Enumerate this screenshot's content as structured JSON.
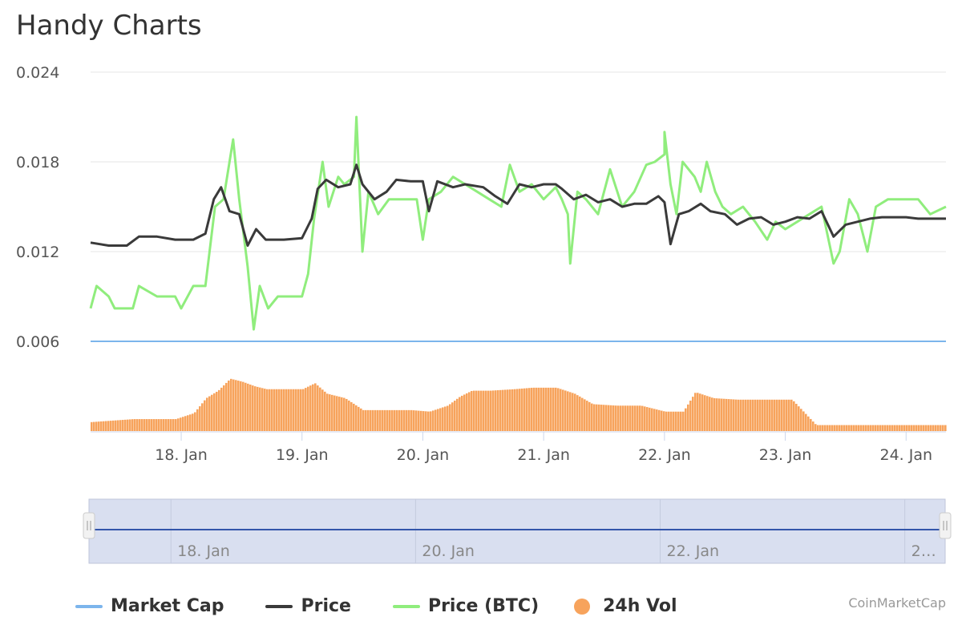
{
  "title": "Handy Charts",
  "credits": "CoinMarketCap",
  "colors": {
    "market_cap": "#7cb5ec",
    "price": "#3a3a3a",
    "price_btc": "#90ed7d",
    "volume": "#f7a35c",
    "grid": "#e6e6e6",
    "navigator_fill": "#d9dff0",
    "navigator_line": "#3355aa"
  },
  "chart_data": {
    "type": "line",
    "ylim": [
      0,
      0.024
    ],
    "yticks": [
      "0.006",
      "0.012",
      "0.018",
      "0.024"
    ],
    "xticks": [
      "18. Jan",
      "19. Jan",
      "20. Jan",
      "21. Jan",
      "22. Jan",
      "23. Jan",
      "24. Jan"
    ],
    "x_range_days": [
      17.25,
      24.33
    ],
    "grid": true,
    "series": [
      {
        "name": "Price",
        "type": "line",
        "points": [
          [
            17.25,
            0.0126
          ],
          [
            17.4,
            0.0124
          ],
          [
            17.55,
            0.0124
          ],
          [
            17.65,
            0.013
          ],
          [
            17.8,
            0.013
          ],
          [
            17.95,
            0.0128
          ],
          [
            18.1,
            0.0128
          ],
          [
            18.2,
            0.0132
          ],
          [
            18.27,
            0.0155
          ],
          [
            18.33,
            0.0163
          ],
          [
            18.4,
            0.0147
          ],
          [
            18.48,
            0.0145
          ],
          [
            18.55,
            0.0124
          ],
          [
            18.62,
            0.0135
          ],
          [
            18.7,
            0.0128
          ],
          [
            18.85,
            0.0128
          ],
          [
            19.0,
            0.0129
          ],
          [
            19.08,
            0.0142
          ],
          [
            19.13,
            0.0162
          ],
          [
            19.2,
            0.0168
          ],
          [
            19.3,
            0.0163
          ],
          [
            19.4,
            0.0165
          ],
          [
            19.45,
            0.0178
          ],
          [
            19.5,
            0.0165
          ],
          [
            19.6,
            0.0155
          ],
          [
            19.7,
            0.016
          ],
          [
            19.78,
            0.0168
          ],
          [
            19.9,
            0.0167
          ],
          [
            20.0,
            0.0167
          ],
          [
            20.05,
            0.0147
          ],
          [
            20.12,
            0.0167
          ],
          [
            20.25,
            0.0163
          ],
          [
            20.35,
            0.0165
          ],
          [
            20.5,
            0.0163
          ],
          [
            20.6,
            0.0157
          ],
          [
            20.7,
            0.0152
          ],
          [
            20.8,
            0.0165
          ],
          [
            20.9,
            0.0163
          ],
          [
            21.0,
            0.0165
          ],
          [
            21.1,
            0.0165
          ],
          [
            21.15,
            0.0162
          ],
          [
            21.25,
            0.0155
          ],
          [
            21.35,
            0.0158
          ],
          [
            21.45,
            0.0153
          ],
          [
            21.55,
            0.0155
          ],
          [
            21.65,
            0.015
          ],
          [
            21.75,
            0.0152
          ],
          [
            21.85,
            0.0152
          ],
          [
            21.95,
            0.0157
          ],
          [
            22.0,
            0.0153
          ],
          [
            22.05,
            0.0125
          ],
          [
            22.12,
            0.0145
          ],
          [
            22.2,
            0.0147
          ],
          [
            22.3,
            0.0152
          ],
          [
            22.38,
            0.0147
          ],
          [
            22.5,
            0.0145
          ],
          [
            22.6,
            0.0138
          ],
          [
            22.7,
            0.0142
          ],
          [
            22.8,
            0.0143
          ],
          [
            22.9,
            0.0138
          ],
          [
            23.0,
            0.014
          ],
          [
            23.1,
            0.0143
          ],
          [
            23.2,
            0.0142
          ],
          [
            23.3,
            0.0147
          ],
          [
            23.4,
            0.013
          ],
          [
            23.5,
            0.0138
          ],
          [
            23.6,
            0.014
          ],
          [
            23.7,
            0.0142
          ],
          [
            23.8,
            0.0143
          ],
          [
            23.9,
            0.0143
          ],
          [
            24.0,
            0.0143
          ],
          [
            24.1,
            0.0142
          ],
          [
            24.2,
            0.0142
          ],
          [
            24.33,
            0.0142
          ]
        ]
      },
      {
        "name": "Price (BTC)",
        "type": "line",
        "points": [
          [
            17.25,
            0.0082
          ],
          [
            17.3,
            0.0097
          ],
          [
            17.4,
            0.009
          ],
          [
            17.45,
            0.0082
          ],
          [
            17.6,
            0.0082
          ],
          [
            17.65,
            0.0097
          ],
          [
            17.8,
            0.009
          ],
          [
            17.95,
            0.009
          ],
          [
            18.0,
            0.0082
          ],
          [
            18.1,
            0.0097
          ],
          [
            18.2,
            0.0097
          ],
          [
            18.28,
            0.015
          ],
          [
            18.35,
            0.0155
          ],
          [
            18.43,
            0.0195
          ],
          [
            18.48,
            0.0155
          ],
          [
            18.55,
            0.011
          ],
          [
            18.6,
            0.0068
          ],
          [
            18.65,
            0.0097
          ],
          [
            18.72,
            0.0082
          ],
          [
            18.8,
            0.009
          ],
          [
            19.0,
            0.009
          ],
          [
            19.05,
            0.0105
          ],
          [
            19.1,
            0.0142
          ],
          [
            19.17,
            0.018
          ],
          [
            19.22,
            0.015
          ],
          [
            19.3,
            0.017
          ],
          [
            19.35,
            0.0165
          ],
          [
            19.43,
            0.017
          ],
          [
            19.45,
            0.021
          ],
          [
            19.5,
            0.012
          ],
          [
            19.55,
            0.016
          ],
          [
            19.63,
            0.0145
          ],
          [
            19.72,
            0.0155
          ],
          [
            19.8,
            0.0155
          ],
          [
            19.95,
            0.0155
          ],
          [
            20.0,
            0.0128
          ],
          [
            20.05,
            0.0155
          ],
          [
            20.15,
            0.016
          ],
          [
            20.25,
            0.017
          ],
          [
            20.35,
            0.0165
          ],
          [
            20.45,
            0.016
          ],
          [
            20.55,
            0.0155
          ],
          [
            20.65,
            0.015
          ],
          [
            20.72,
            0.0178
          ],
          [
            20.8,
            0.016
          ],
          [
            20.9,
            0.0165
          ],
          [
            21.0,
            0.0155
          ],
          [
            21.1,
            0.0163
          ],
          [
            21.15,
            0.0155
          ],
          [
            21.2,
            0.0145
          ],
          [
            21.22,
            0.0112
          ],
          [
            21.28,
            0.016
          ],
          [
            21.35,
            0.0155
          ],
          [
            21.45,
            0.0145
          ],
          [
            21.5,
            0.016
          ],
          [
            21.55,
            0.0175
          ],
          [
            21.65,
            0.015
          ],
          [
            21.75,
            0.016
          ],
          [
            21.85,
            0.0178
          ],
          [
            21.92,
            0.018
          ],
          [
            22.0,
            0.0185
          ],
          [
            22.0,
            0.02
          ],
          [
            22.05,
            0.0165
          ],
          [
            22.1,
            0.0145
          ],
          [
            22.15,
            0.018
          ],
          [
            22.25,
            0.017
          ],
          [
            22.3,
            0.016
          ],
          [
            22.35,
            0.018
          ],
          [
            22.42,
            0.016
          ],
          [
            22.48,
            0.015
          ],
          [
            22.55,
            0.0145
          ],
          [
            22.65,
            0.015
          ],
          [
            22.75,
            0.014
          ],
          [
            22.85,
            0.0128
          ],
          [
            22.92,
            0.014
          ],
          [
            23.0,
            0.0135
          ],
          [
            23.1,
            0.014
          ],
          [
            23.2,
            0.0145
          ],
          [
            23.3,
            0.015
          ],
          [
            23.4,
            0.0112
          ],
          [
            23.45,
            0.012
          ],
          [
            23.53,
            0.0155
          ],
          [
            23.6,
            0.0145
          ],
          [
            23.68,
            0.012
          ],
          [
            23.75,
            0.015
          ],
          [
            23.85,
            0.0155
          ],
          [
            23.95,
            0.0155
          ],
          [
            24.1,
            0.0155
          ],
          [
            24.2,
            0.0145
          ],
          [
            24.33,
            0.015
          ]
        ]
      },
      {
        "name": "Market Cap",
        "type": "line",
        "points": [
          [
            17.25,
            0.006
          ],
          [
            24.33,
            0.006
          ]
        ]
      },
      {
        "name": "24h Vol",
        "type": "column",
        "points": [
          [
            17.25,
            0.0006
          ],
          [
            17.6,
            0.0008
          ],
          [
            17.95,
            0.0008
          ],
          [
            18.1,
            0.0012
          ],
          [
            18.2,
            0.0022
          ],
          [
            18.3,
            0.0027
          ],
          [
            18.4,
            0.0035
          ],
          [
            18.5,
            0.0033
          ],
          [
            18.6,
            0.003
          ],
          [
            18.7,
            0.0028
          ],
          [
            18.85,
            0.0028
          ],
          [
            19.0,
            0.0028
          ],
          [
            19.1,
            0.0032
          ],
          [
            19.2,
            0.0025
          ],
          [
            19.35,
            0.0022
          ],
          [
            19.5,
            0.0014
          ],
          [
            19.7,
            0.0014
          ],
          [
            19.9,
            0.0014
          ],
          [
            20.05,
            0.0013
          ],
          [
            20.2,
            0.0017
          ],
          [
            20.3,
            0.0023
          ],
          [
            20.4,
            0.0027
          ],
          [
            20.55,
            0.0027
          ],
          [
            20.75,
            0.0028
          ],
          [
            20.9,
            0.0029
          ],
          [
            21.0,
            0.0029
          ],
          [
            21.1,
            0.0029
          ],
          [
            21.25,
            0.0025
          ],
          [
            21.4,
            0.0018
          ],
          [
            21.6,
            0.0017
          ],
          [
            21.8,
            0.0017
          ],
          [
            22.0,
            0.0013
          ],
          [
            22.15,
            0.0013
          ],
          [
            22.25,
            0.0026
          ],
          [
            22.4,
            0.0022
          ],
          [
            22.6,
            0.0021
          ],
          [
            22.85,
            0.0021
          ],
          [
            23.05,
            0.0021
          ],
          [
            23.25,
            0.0004
          ],
          [
            23.5,
            0.0004
          ],
          [
            23.8,
            0.0004
          ],
          [
            24.1,
            0.0004
          ],
          [
            24.33,
            0.0004
          ]
        ]
      }
    ],
    "navigator": {
      "xticks": [
        "18. Jan",
        "20. Jan",
        "22. Jan",
        "2…"
      ]
    },
    "legend": {
      "placement": "bottom-left",
      "items": [
        "Market Cap",
        "Price",
        "Price (BTC)",
        "24h Vol"
      ]
    }
  }
}
